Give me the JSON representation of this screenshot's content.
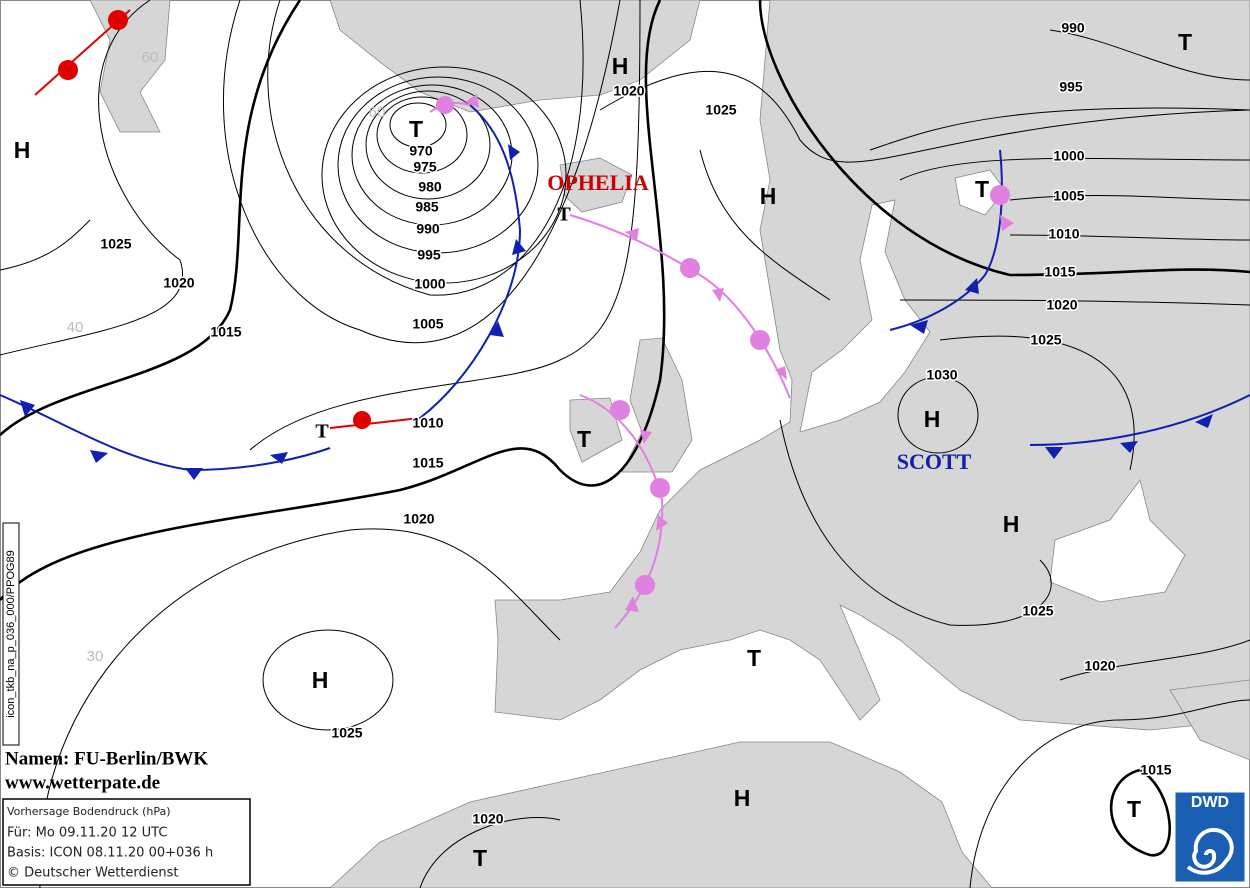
{
  "pressure_centers": [
    "H",
    "T",
    "H",
    "H",
    "T",
    "T",
    "T",
    "T",
    "T",
    "H",
    "H",
    "H",
    "T",
    "H",
    "T",
    "T"
  ],
  "isobar_labels": [
    990,
    995,
    1000,
    1005,
    1010,
    1015,
    1020,
    1025,
    1030,
    1025,
    1020,
    970,
    975,
    980,
    985,
    990,
    995,
    1000,
    1005,
    1010,
    1015,
    1020,
    1025,
    1020,
    1015,
    1025,
    1020,
    1025,
    1020,
    1015
  ],
  "latitude_labels": [
    60,
    60,
    40,
    30
  ],
  "system_names": [
    "OPHELIA",
    "SCOTT"
  ],
  "credits": {
    "names": "Namen: FU-Berlin/BWK",
    "url": "www.wetterpate.de"
  },
  "info_box": [
    "Vorhersage Bodendruck (hPa)",
    "Für:  Mo 09.11.20  12 UTC",
    "Basis: ICON  08.11.20 00+036 h",
    "© Deutscher Wetterdienst"
  ],
  "logo": "DWD",
  "side_label": "icon_tkb_na_p_036_000/PPOG89"
}
